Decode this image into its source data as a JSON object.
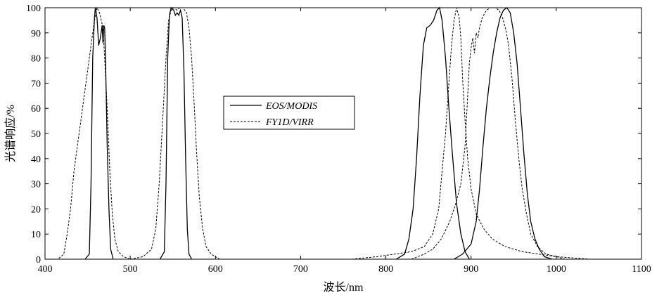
{
  "chart_data": {
    "type": "line",
    "xlabel": "波长/nm",
    "ylabel": "光谱响应/%",
    "xlim": [
      400,
      1100
    ],
    "ylim": [
      0,
      100
    ],
    "xticks": [
      400,
      500,
      600,
      700,
      800,
      900,
      1000,
      1100
    ],
    "yticks": [
      0,
      10,
      20,
      30,
      40,
      50,
      60,
      70,
      80,
      90,
      100
    ],
    "grid": false,
    "legend_position": "center-left",
    "series": [
      {
        "name": "EOS/MODIS",
        "style": "solid",
        "color": "#000000",
        "segments": [
          [
            [
              447,
              0
            ],
            [
              452,
              2
            ],
            [
              454,
              30
            ],
            [
              456,
              80
            ],
            [
              458,
              96
            ],
            [
              459,
              100
            ],
            [
              461,
              96
            ],
            [
              463,
              85
            ],
            [
              465,
              88
            ],
            [
              467,
              93
            ],
            [
              468,
              86
            ],
            [
              469,
              93
            ],
            [
              470,
              92
            ],
            [
              471,
              80
            ],
            [
              473,
              45
            ],
            [
              475,
              20
            ],
            [
              477,
              4
            ],
            [
              480,
              0
            ]
          ],
          [
            [
              535,
              0
            ],
            [
              540,
              3
            ],
            [
              542,
              30
            ],
            [
              544,
              80
            ],
            [
              546,
              97
            ],
            [
              548,
              100
            ],
            [
              551,
              99
            ],
            [
              553,
              97
            ],
            [
              555,
              98
            ],
            [
              557,
              97
            ],
            [
              559,
              99
            ],
            [
              561,
              96
            ],
            [
              563,
              75
            ],
            [
              565,
              40
            ],
            [
              567,
              12
            ],
            [
              569,
              2
            ],
            [
              572,
              0
            ]
          ],
          [
            [
              812,
              0
            ],
            [
              822,
              2
            ],
            [
              827,
              8
            ],
            [
              832,
              20
            ],
            [
              836,
              40
            ],
            [
              840,
              65
            ],
            [
              844,
              85
            ],
            [
              848,
              92
            ],
            [
              852,
              93
            ],
            [
              856,
              95
            ],
            [
              860,
              99
            ],
            [
              863,
              100
            ],
            [
              866,
              95
            ],
            [
              870,
              80
            ],
            [
              874,
              60
            ],
            [
              878,
              42
            ],
            [
              883,
              22
            ],
            [
              888,
              10
            ],
            [
              893,
              3
            ],
            [
              898,
              0
            ]
          ],
          [
            [
              880,
              0
            ],
            [
              890,
              2
            ],
            [
              900,
              6
            ],
            [
              906,
              15
            ],
            [
              910,
              28
            ],
            [
              914,
              45
            ],
            [
              918,
              60
            ],
            [
              922,
              72
            ],
            [
              926,
              82
            ],
            [
              930,
              90
            ],
            [
              934,
              96
            ],
            [
              938,
              99
            ],
            [
              942,
              100
            ],
            [
              946,
              98
            ],
            [
              950,
              90
            ],
            [
              954,
              78
            ],
            [
              958,
              60
            ],
            [
              962,
              42
            ],
            [
              966,
              26
            ],
            [
              970,
              15
            ],
            [
              975,
              8
            ],
            [
              980,
              4
            ],
            [
              986,
              1
            ],
            [
              995,
              0
            ]
          ]
        ]
      },
      {
        "name": "FY1D/VIRR",
        "style": "dashed",
        "color": "#000000",
        "segments": [
          [
            [
              400,
              0
            ],
            [
              415,
              0
            ],
            [
              422,
              2
            ],
            [
              426,
              10
            ],
            [
              430,
              20
            ],
            [
              434,
              35
            ],
            [
              438,
              45
            ],
            [
              442,
              55
            ],
            [
              446,
              65
            ],
            [
              450,
              75
            ],
            [
              454,
              85
            ],
            [
              458,
              95
            ],
            [
              461,
              100
            ],
            [
              464,
              98
            ],
            [
              466,
              95
            ],
            [
              468,
              92
            ],
            [
              470,
              80
            ],
            [
              473,
              60
            ],
            [
              476,
              35
            ],
            [
              479,
              18
            ],
            [
              482,
              8
            ],
            [
              486,
              3
            ],
            [
              492,
              1
            ],
            [
              500,
              0
            ]
          ],
          [
            [
              500,
              0
            ],
            [
              515,
              1
            ],
            [
              525,
              4
            ],
            [
              530,
              12
            ],
            [
              534,
              30
            ],
            [
              538,
              55
            ],
            [
              542,
              80
            ],
            [
              545,
              95
            ],
            [
              548,
              99
            ],
            [
              551,
              100
            ],
            [
              555,
              99
            ],
            [
              558,
              100
            ],
            [
              562,
              100
            ],
            [
              566,
              98
            ],
            [
              569,
              92
            ],
            [
              572,
              80
            ],
            [
              575,
              62
            ],
            [
              578,
              42
            ],
            [
              581,
              25
            ],
            [
              585,
              12
            ],
            [
              589,
              5
            ],
            [
              595,
              2
            ],
            [
              605,
              0
            ],
            [
              650,
              0
            ]
          ],
          [
            [
              760,
              0
            ],
            [
              790,
              1
            ],
            [
              810,
              2
            ],
            [
              830,
              3
            ],
            [
              845,
              5
            ],
            [
              855,
              10
            ],
            [
              862,
              20
            ],
            [
              866,
              35
            ],
            [
              870,
              50
            ],
            [
              874,
              70
            ],
            [
              877,
              85
            ],
            [
              880,
              95
            ],
            [
              883,
              100
            ],
            [
              886,
              96
            ],
            [
              888,
              88
            ],
            [
              890,
              72
            ],
            [
              893,
              55
            ],
            [
              896,
              40
            ],
            [
              900,
              28
            ],
            [
              906,
              18
            ],
            [
              915,
              12
            ],
            [
              925,
              8
            ],
            [
              940,
              5
            ],
            [
              960,
              3
            ],
            [
              980,
              2
            ],
            [
              1000,
              1
            ],
            [
              1010,
              0
            ]
          ],
          [
            [
              830,
              0
            ],
            [
              845,
              2
            ],
            [
              855,
              4
            ],
            [
              865,
              8
            ],
            [
              875,
              15
            ],
            [
              882,
              22
            ],
            [
              888,
              30
            ],
            [
              893,
              45
            ],
            [
              896,
              65
            ],
            [
              898,
              78
            ],
            [
              900,
              84
            ],
            [
              902,
              88
            ],
            [
              904,
              82
            ],
            [
              906,
              90
            ],
            [
              908,
              88
            ],
            [
              910,
              92
            ],
            [
              913,
              96
            ],
            [
              918,
              99
            ],
            [
              923,
              100
            ],
            [
              928,
              100
            ],
            [
              933,
              99
            ],
            [
              937,
              96
            ],
            [
              941,
              91
            ],
            [
              944,
              85
            ],
            [
              948,
              72
            ],
            [
              952,
              55
            ],
            [
              956,
              40
            ],
            [
              960,
              28
            ],
            [
              965,
              18
            ],
            [
              970,
              10
            ],
            [
              978,
              5
            ],
            [
              988,
              2
            ],
            [
              1000,
              1
            ],
            [
              1040,
              0
            ]
          ]
        ]
      }
    ]
  }
}
